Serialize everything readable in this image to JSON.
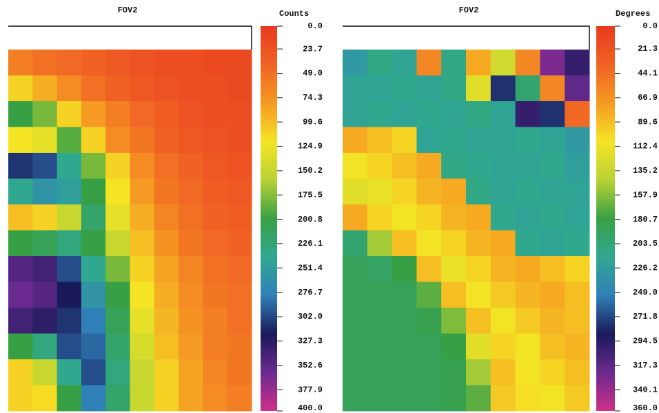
{
  "chart_data": [
    {
      "type": "heatmap",
      "title": "FOV2",
      "colorbar_label": "Counts",
      "zlim": [
        0,
        400
      ],
      "zticks": [
        {
          "value": 0,
          "label": "0.0"
        },
        23.7,
        {
          "value": 49,
          "label": "49.0"
        },
        74.3,
        99.6,
        124.9,
        150.2,
        175.5,
        200.8,
        226.1,
        251.4,
        276.7,
        {
          "value": 302,
          "label": "302.0"
        },
        327.3,
        352.6,
        377.9,
        {
          "value": 400,
          "label": "400.0"
        }
      ],
      "colorscale": [
        "#e83a1e",
        "#f06224",
        "#f59a22",
        "#f5e424",
        "#b8d234",
        "#38a044",
        "#30a890",
        "#3080b8",
        "#1a1a5a",
        "#6a2a90",
        "#d03088"
      ],
      "values": [
        [
          60,
          50,
          45,
          40,
          30,
          25,
          20,
          20,
          15,
          15
        ],
        [
          110,
          90,
          70,
          50,
          40,
          30,
          25,
          20,
          20,
          15
        ],
        [
          200,
          180,
          110,
          80,
          60,
          45,
          35,
          25,
          20,
          20
        ],
        [
          120,
          130,
          190,
          110,
          70,
          55,
          40,
          30,
          25,
          20
        ],
        [
          310,
          300,
          240,
          180,
          110,
          70,
          50,
          40,
          30,
          25
        ],
        [
          240,
          260,
          250,
          200,
          120,
          80,
          55,
          45,
          35,
          30
        ],
        [
          100,
          110,
          150,
          220,
          130,
          90,
          65,
          50,
          40,
          35
        ],
        [
          200,
          210,
          230,
          200,
          150,
          100,
          75,
          55,
          45,
          40
        ],
        [
          350,
          340,
          300,
          240,
          180,
          110,
          85,
          65,
          50,
          45
        ],
        [
          360,
          350,
          320,
          260,
          200,
          120,
          90,
          70,
          55,
          50
        ],
        [
          340,
          330,
          310,
          280,
          210,
          130,
          95,
          75,
          60,
          50
        ],
        [
          200,
          230,
          300,
          290,
          220,
          140,
          100,
          80,
          60,
          55
        ],
        [
          110,
          150,
          240,
          300,
          230,
          150,
          110,
          85,
          65,
          55
        ],
        [
          110,
          115,
          200,
          280,
          220,
          150,
          110,
          85,
          70,
          60
        ]
      ]
    },
    {
      "type": "heatmap",
      "title": "FOV2",
      "colorbar_label": "Degrees",
      "zlim": [
        0,
        360
      ],
      "zticks": [
        {
          "value": 0,
          "label": "0.0"
        },
        21.3,
        44.1,
        66.9,
        89.6,
        112.4,
        135.2,
        157.9,
        180.7,
        203.5,
        226.2,
        {
          "value": 249,
          "label": "249.0"
        },
        271.8,
        294.5,
        317.3,
        340.1,
        {
          "value": 360,
          "label": "360.0"
        }
      ],
      "colorscale": [
        "#e83a1e",
        "#f06224",
        "#f59a22",
        "#f5e424",
        "#b8d234",
        "#38a044",
        "#30a890",
        "#3080b8",
        "#1a1a5a",
        "#6a2a90",
        "#d03088"
      ],
      "values": [
        [
          230,
          210,
          220,
          60,
          210,
          80,
          130,
          60,
          330,
          300
        ],
        [
          220,
          220,
          215,
          220,
          210,
          120,
          280,
          200,
          60,
          320
        ],
        [
          220,
          215,
          220,
          215,
          220,
          210,
          220,
          300,
          280,
          40
        ],
        [
          80,
          90,
          100,
          220,
          215,
          220,
          220,
          215,
          220,
          230
        ],
        [
          110,
          100,
          90,
          80,
          210,
          215,
          220,
          220,
          215,
          225
        ],
        [
          120,
          115,
          100,
          85,
          80,
          210,
          220,
          215,
          220,
          220
        ],
        [
          80,
          100,
          110,
          100,
          85,
          80,
          215,
          220,
          215,
          220
        ],
        [
          200,
          150,
          90,
          110,
          100,
          85,
          80,
          215,
          220,
          215
        ],
        [
          190,
          195,
          180,
          90,
          115,
          100,
          85,
          80,
          90,
          100
        ],
        [
          190,
          190,
          190,
          170,
          90,
          110,
          95,
          85,
          80,
          90
        ],
        [
          190,
          190,
          190,
          185,
          160,
          90,
          110,
          95,
          85,
          90
        ],
        [
          190,
          190,
          190,
          190,
          180,
          120,
          100,
          110,
          90,
          85
        ],
        [
          190,
          190,
          190,
          190,
          185,
          150,
          90,
          110,
          100,
          90
        ],
        [
          190,
          190,
          190,
          190,
          185,
          170,
          95,
          105,
          110,
          95
        ]
      ]
    }
  ]
}
